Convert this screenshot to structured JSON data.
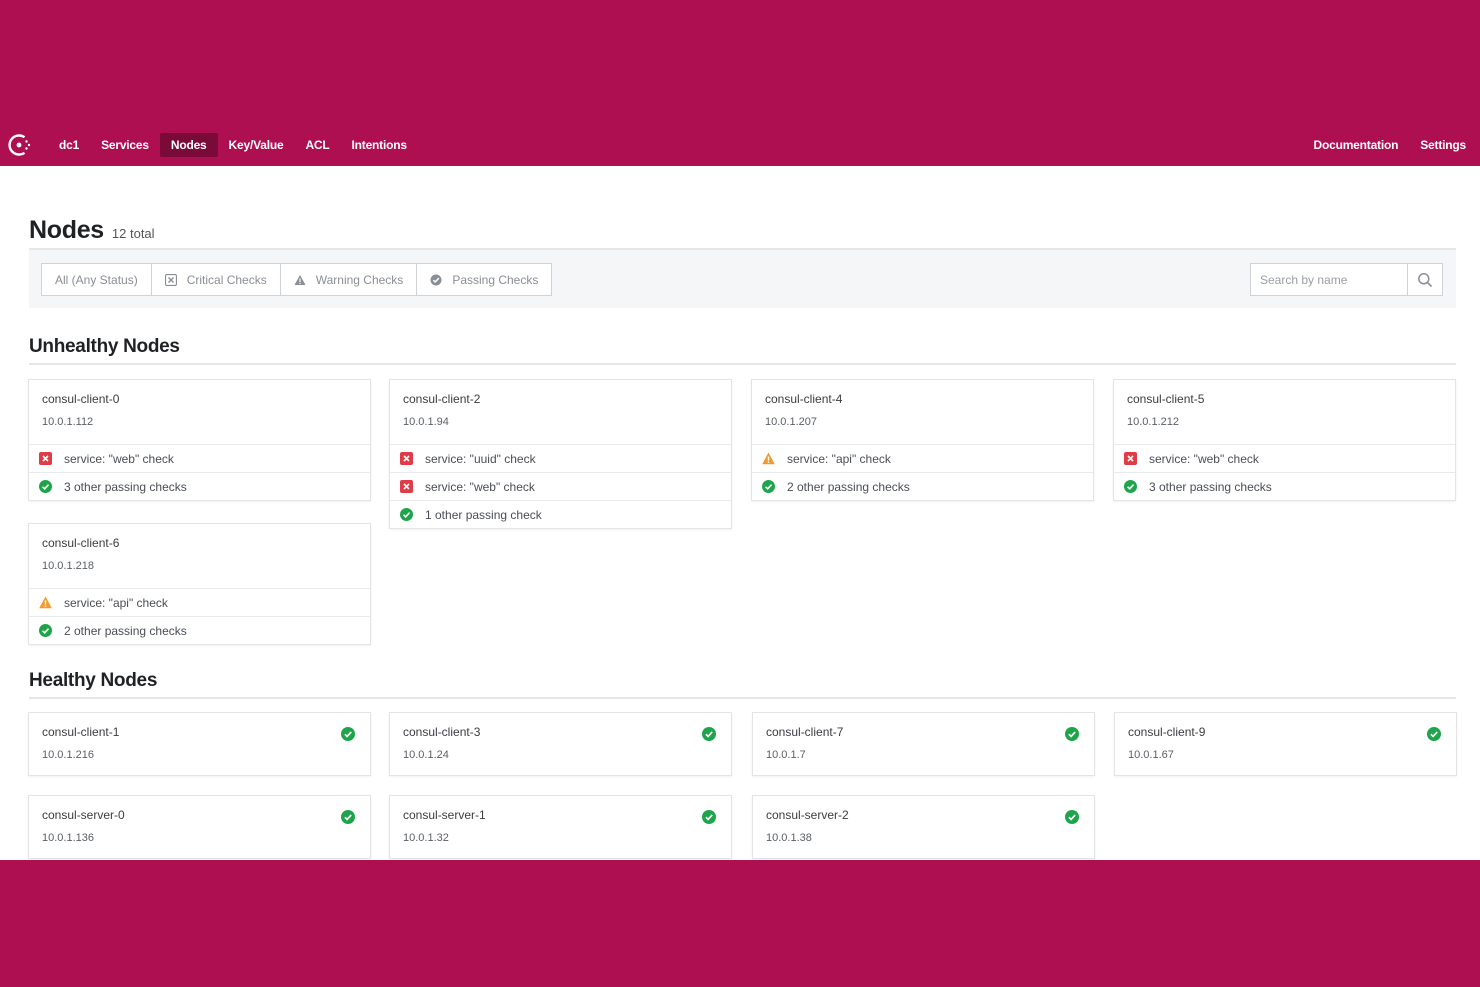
{
  "topbar": {
    "datacenter": "dc1",
    "nav": [
      "Services",
      "Nodes",
      "Key/Value",
      "ACL",
      "Intentions"
    ],
    "active_nav": "Nodes",
    "right": [
      "Documentation",
      "Settings"
    ]
  },
  "page": {
    "title": "Nodes",
    "count": "12 total"
  },
  "filters": {
    "all": "All (Any Status)",
    "critical": "Critical Checks",
    "warning": "Warning Checks",
    "passing": "Passing Checks",
    "search_placeholder": "Search by name"
  },
  "unhealthy": {
    "title": "Unhealthy Nodes",
    "nodes": [
      {
        "name": "consul-client-0",
        "ip": "10.0.1.112",
        "checks": [
          {
            "status": "critical",
            "text": "service: \"web\" check"
          },
          {
            "status": "passing",
            "text": "3 other passing checks"
          }
        ]
      },
      {
        "name": "consul-client-2",
        "ip": "10.0.1.94",
        "checks": [
          {
            "status": "critical",
            "text": "service: \"uuid\" check"
          },
          {
            "status": "critical",
            "text": "service: \"web\" check"
          },
          {
            "status": "passing",
            "text": "1 other passing check"
          }
        ]
      },
      {
        "name": "consul-client-4",
        "ip": "10.0.1.207",
        "checks": [
          {
            "status": "warning",
            "text": "service: \"api\" check"
          },
          {
            "status": "passing",
            "text": "2 other passing checks"
          }
        ]
      },
      {
        "name": "consul-client-5",
        "ip": "10.0.1.212",
        "checks": [
          {
            "status": "critical",
            "text": "service: \"web\" check"
          },
          {
            "status": "passing",
            "text": "3 other passing checks"
          }
        ]
      },
      {
        "name": "consul-client-6",
        "ip": "10.0.1.218",
        "checks": [
          {
            "status": "warning",
            "text": "service: \"api\" check"
          },
          {
            "status": "passing",
            "text": "2 other passing checks"
          }
        ]
      }
    ]
  },
  "healthy": {
    "title": "Healthy Nodes",
    "nodes": [
      {
        "name": "consul-client-1",
        "ip": "10.0.1.216"
      },
      {
        "name": "consul-client-3",
        "ip": "10.0.1.24"
      },
      {
        "name": "consul-client-7",
        "ip": "10.0.1.7"
      },
      {
        "name": "consul-client-9",
        "ip": "10.0.1.67"
      },
      {
        "name": "consul-server-0",
        "ip": "10.0.1.136"
      },
      {
        "name": "consul-server-1",
        "ip": "10.0.1.32"
      },
      {
        "name": "consul-server-2",
        "ip": "10.0.1.38"
      }
    ]
  },
  "colors": {
    "brand": "#ae0f50",
    "critical": "#e03c47",
    "warning": "#f29a2e",
    "passing": "#1ea54c"
  }
}
